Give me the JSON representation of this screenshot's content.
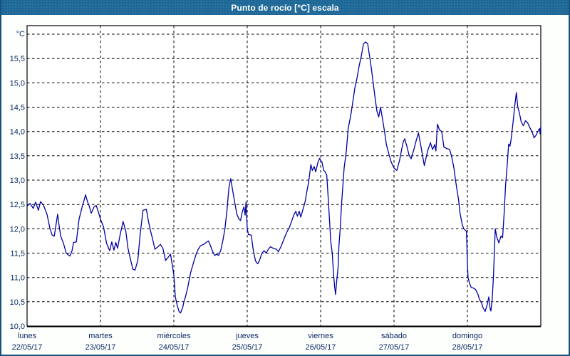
{
  "window": {
    "title": "Punto de rocío [°C] escala"
  },
  "colors": {
    "titlebar_bg": "#1d6897",
    "titlebar_text": "#ffffff",
    "window_border": "#16537e",
    "window_bg": "#fdfffd",
    "plot_bg": "#ffffff",
    "grid": "#000000",
    "frame": "#000000",
    "line": "#0000a0",
    "label_text": "#0c2864"
  },
  "y_axis": {
    "unit_label": "°C",
    "ticks": [
      {
        "value": 10.0,
        "label": "10,0"
      },
      {
        "value": 10.5,
        "label": "10,5"
      },
      {
        "value": 11.0,
        "label": "11,0"
      },
      {
        "value": 11.5,
        "label": "11,5"
      },
      {
        "value": 12.0,
        "label": "12,0"
      },
      {
        "value": 12.5,
        "label": "12,5"
      },
      {
        "value": 13.0,
        "label": "13,0"
      },
      {
        "value": 13.5,
        "label": "13,5"
      },
      {
        "value": 14.0,
        "label": "14,0"
      },
      {
        "value": 14.5,
        "label": "14,5"
      },
      {
        "value": 15.0,
        "label": "15,0"
      },
      {
        "value": 15.5,
        "label": "15,5"
      }
    ]
  },
  "x_axis": {
    "days": [
      {
        "name": "lunes",
        "date": "22/05/17"
      },
      {
        "name": "martes",
        "date": "23/05/17"
      },
      {
        "name": "miércoles",
        "date": "24/05/17"
      },
      {
        "name": "jueves",
        "date": "25/05/17"
      },
      {
        "name": "viernes",
        "date": "26/05/17"
      },
      {
        "name": "sábado",
        "date": "27/05/17"
      },
      {
        "name": "domingo",
        "date": "28/05/17"
      }
    ]
  },
  "chart_data": {
    "type": "line",
    "title": "Punto de rocío [°C] escala",
    "ylabel": "°C",
    "ylim": [
      10.0,
      16.0
    ],
    "y_tick_step": 0.5,
    "x_range_hours": [
      0,
      168
    ],
    "x_categories": [
      "lunes 22/05/17",
      "martes 23/05/17",
      "miércoles 24/05/17",
      "jueves 25/05/17",
      "viernes 26/05/17",
      "sábado 27/05/17",
      "domingo 28/05/17"
    ],
    "grid": "dashed",
    "legend": "none",
    "series": [
      {
        "name": "Punto de rocío [°C]",
        "points": [
          [
            0,
            12.47
          ],
          [
            1,
            12.52
          ],
          [
            2,
            12.42
          ],
          [
            2.8,
            12.55
          ],
          [
            3.7,
            12.38
          ],
          [
            4.4,
            12.56
          ],
          [
            5.4,
            12.48
          ],
          [
            6.5,
            12.3
          ],
          [
            7.5,
            12.0
          ],
          [
            8.2,
            11.87
          ],
          [
            8.9,
            11.85
          ],
          [
            9.5,
            12.1
          ],
          [
            10,
            12.3
          ],
          [
            10.5,
            12.05
          ],
          [
            11,
            11.85
          ],
          [
            11.9,
            11.7
          ],
          [
            12.8,
            11.5
          ],
          [
            13.5,
            11.46
          ],
          [
            14,
            11.44
          ],
          [
            14.7,
            11.55
          ],
          [
            15.2,
            11.72
          ],
          [
            16.1,
            11.73
          ],
          [
            17,
            12.2
          ],
          [
            18,
            12.45
          ],
          [
            18.7,
            12.6
          ],
          [
            19.1,
            12.7
          ],
          [
            19.8,
            12.55
          ],
          [
            20.3,
            12.47
          ],
          [
            21,
            12.32
          ],
          [
            21.9,
            12.45
          ],
          [
            22.6,
            12.48
          ],
          [
            23.3,
            12.35
          ],
          [
            24,
            12.2
          ],
          [
            25,
            12.04
          ],
          [
            26,
            11.7
          ],
          [
            27,
            11.55
          ],
          [
            27.7,
            11.73
          ],
          [
            28.4,
            11.56
          ],
          [
            29,
            11.72
          ],
          [
            29.6,
            11.6
          ],
          [
            30.5,
            11.9
          ],
          [
            31.4,
            12.15
          ],
          [
            32.3,
            11.95
          ],
          [
            33,
            11.6
          ],
          [
            33.9,
            11.35
          ],
          [
            34.6,
            11.17
          ],
          [
            35.3,
            11.15
          ],
          [
            36.2,
            11.35
          ],
          [
            37,
            11.9
          ],
          [
            37.9,
            12.38
          ],
          [
            39,
            12.4
          ],
          [
            39.7,
            12.15
          ],
          [
            40.4,
            11.95
          ],
          [
            41,
            11.8
          ],
          [
            41.8,
            11.58
          ],
          [
            42.8,
            11.63
          ],
          [
            43.6,
            11.68
          ],
          [
            44.4,
            11.6
          ],
          [
            45.3,
            11.35
          ],
          [
            46.2,
            11.42
          ],
          [
            46.9,
            11.48
          ],
          [
            47.5,
            11.25
          ],
          [
            48,
            11.05
          ],
          [
            48.5,
            10.6
          ],
          [
            49,
            10.45
          ],
          [
            49.7,
            10.3
          ],
          [
            50.2,
            10.27
          ],
          [
            50.9,
            10.38
          ],
          [
            51.4,
            10.53
          ],
          [
            51.8,
            10.6
          ],
          [
            52.5,
            10.78
          ],
          [
            53.5,
            11.1
          ],
          [
            54.4,
            11.3
          ],
          [
            55.3,
            11.48
          ],
          [
            56,
            11.58
          ],
          [
            56.7,
            11.65
          ],
          [
            57.7,
            11.68
          ],
          [
            58.6,
            11.72
          ],
          [
            59.3,
            11.75
          ],
          [
            60,
            11.65
          ],
          [
            60.7,
            11.53
          ],
          [
            61.4,
            11.45
          ],
          [
            62,
            11.48
          ],
          [
            62.6,
            11.45
          ],
          [
            63.3,
            11.55
          ],
          [
            64,
            11.75
          ],
          [
            64.7,
            12.0
          ],
          [
            65.4,
            12.4
          ],
          [
            66,
            12.85
          ],
          [
            66.6,
            13.03
          ],
          [
            67.2,
            12.8
          ],
          [
            67.9,
            12.55
          ],
          [
            68.6,
            12.3
          ],
          [
            69.3,
            12.2
          ],
          [
            69.8,
            12.17
          ],
          [
            70.4,
            12.35
          ],
          [
            70.9,
            12.45
          ],
          [
            71.3,
            12.28
          ],
          [
            71.6,
            12.55
          ],
          [
            72,
            12.0
          ],
          [
            72.4,
            11.88
          ],
          [
            73.3,
            11.87
          ],
          [
            74,
            11.55
          ],
          [
            74.7,
            11.34
          ],
          [
            75.4,
            11.28
          ],
          [
            76,
            11.35
          ],
          [
            76.8,
            11.5
          ],
          [
            77.5,
            11.55
          ],
          [
            78.2,
            11.5
          ],
          [
            78.9,
            11.58
          ],
          [
            79.6,
            11.63
          ],
          [
            80.5,
            11.6
          ],
          [
            81.5,
            11.58
          ],
          [
            82.2,
            11.53
          ],
          [
            83,
            11.63
          ],
          [
            83.7,
            11.74
          ],
          [
            84.4,
            11.85
          ],
          [
            85.1,
            11.95
          ],
          [
            85.8,
            12.03
          ],
          [
            86.5,
            12.15
          ],
          [
            87.2,
            12.28
          ],
          [
            87.9,
            12.36
          ],
          [
            88.4,
            12.26
          ],
          [
            89,
            12.36
          ],
          [
            89.5,
            12.24
          ],
          [
            90,
            12.35
          ],
          [
            90.9,
            12.55
          ],
          [
            91.6,
            12.8
          ],
          [
            92.1,
            12.97
          ],
          [
            92.8,
            13.32
          ],
          [
            93.3,
            13.2
          ],
          [
            93.9,
            13.28
          ],
          [
            94.4,
            13.17
          ],
          [
            95.1,
            13.36
          ],
          [
            95.7,
            13.45
          ],
          [
            96,
            13.4
          ],
          [
            96.4,
            13.38
          ],
          [
            97,
            13.2
          ],
          [
            97.5,
            13.17
          ],
          [
            98,
            13.1
          ],
          [
            98.5,
            12.62
          ],
          [
            98.9,
            12.2
          ],
          [
            99.3,
            11.74
          ],
          [
            99.8,
            11.5
          ],
          [
            100.2,
            11.1
          ],
          [
            100.6,
            10.8
          ],
          [
            100.9,
            10.65
          ],
          [
            101.3,
            10.95
          ],
          [
            101.7,
            11.2
          ],
          [
            102,
            11.65
          ],
          [
            102.4,
            12.0
          ],
          [
            102.8,
            12.47
          ],
          [
            103.3,
            12.9
          ],
          [
            103.7,
            13.25
          ],
          [
            104.4,
            13.6
          ],
          [
            105,
            14.05
          ],
          [
            105.9,
            14.35
          ],
          [
            106.5,
            14.6
          ],
          [
            107.2,
            14.9
          ],
          [
            107.9,
            15.1
          ],
          [
            108.6,
            15.35
          ],
          [
            109.3,
            15.55
          ],
          [
            110,
            15.8
          ],
          [
            110.7,
            15.84
          ],
          [
            111.4,
            15.8
          ],
          [
            112,
            15.55
          ],
          [
            112.6,
            15.3
          ],
          [
            113.3,
            14.95
          ],
          [
            113.9,
            14.65
          ],
          [
            114.4,
            14.42
          ],
          [
            115,
            14.3
          ],
          [
            115.6,
            14.5
          ],
          [
            116.2,
            14.27
          ],
          [
            116.9,
            14.0
          ],
          [
            117.5,
            13.73
          ],
          [
            118.4,
            13.52
          ],
          [
            119.1,
            13.37
          ],
          [
            120,
            13.25
          ],
          [
            120.9,
            13.2
          ],
          [
            121.8,
            13.4
          ],
          [
            122.5,
            13.63
          ],
          [
            123,
            13.78
          ],
          [
            123.5,
            13.85
          ],
          [
            124.2,
            13.7
          ],
          [
            124.9,
            13.52
          ],
          [
            125.6,
            13.44
          ],
          [
            126.5,
            13.63
          ],
          [
            127.2,
            13.8
          ],
          [
            128,
            13.97
          ],
          [
            128.9,
            13.66
          ],
          [
            129.9,
            13.3
          ],
          [
            131,
            13.6
          ],
          [
            131.9,
            13.77
          ],
          [
            132.6,
            13.63
          ],
          [
            133.3,
            13.73
          ],
          [
            133.7,
            13.6
          ],
          [
            134.2,
            14.15
          ],
          [
            134.9,
            14.03
          ],
          [
            135.6,
            14.0
          ],
          [
            136.3,
            13.68
          ],
          [
            137.2,
            13.65
          ],
          [
            138.2,
            13.63
          ],
          [
            138.9,
            13.47
          ],
          [
            139.6,
            13.25
          ],
          [
            140.1,
            13.0
          ],
          [
            140.6,
            12.8
          ],
          [
            141.1,
            12.6
          ],
          [
            141.6,
            12.32
          ],
          [
            142.3,
            12.09
          ],
          [
            142.8,
            12.0
          ],
          [
            143.3,
            11.97
          ],
          [
            143.7,
            11.95
          ],
          [
            144,
            11.3
          ],
          [
            144.2,
            11.0
          ],
          [
            144.7,
            10.88
          ],
          [
            145.2,
            10.8
          ],
          [
            146,
            10.78
          ],
          [
            146.7,
            10.75
          ],
          [
            147.4,
            10.66
          ],
          [
            148,
            10.54
          ],
          [
            148.6,
            10.48
          ],
          [
            149.1,
            10.38
          ],
          [
            149.8,
            10.3
          ],
          [
            150.5,
            10.45
          ],
          [
            151,
            10.6
          ],
          [
            151.4,
            10.37
          ],
          [
            151.7,
            10.31
          ],
          [
            152.1,
            10.55
          ],
          [
            152.5,
            11.0
          ],
          [
            152.8,
            11.5
          ],
          [
            153.1,
            12.0
          ],
          [
            153.6,
            11.83
          ],
          [
            154.3,
            11.71
          ],
          [
            155,
            11.85
          ],
          [
            155.5,
            11.82
          ],
          [
            156,
            12.3
          ],
          [
            156.5,
            12.9
          ],
          [
            157,
            13.3
          ],
          [
            157.5,
            13.74
          ],
          [
            157.9,
            13.7
          ],
          [
            158.3,
            13.84
          ],
          [
            159,
            14.23
          ],
          [
            159.5,
            14.53
          ],
          [
            160,
            14.8
          ],
          [
            160.5,
            14.5
          ],
          [
            161,
            14.38
          ],
          [
            161.6,
            14.2
          ],
          [
            162.3,
            14.12
          ],
          [
            163,
            14.22
          ],
          [
            163.7,
            14.18
          ],
          [
            164.4,
            14.08
          ],
          [
            165.1,
            14.0
          ],
          [
            165.8,
            13.87
          ],
          [
            166.5,
            13.93
          ],
          [
            167.2,
            14.02
          ],
          [
            167.6,
            14.06
          ],
          [
            167.8,
            13.95
          ],
          [
            168,
            14.1
          ]
        ]
      }
    ]
  }
}
